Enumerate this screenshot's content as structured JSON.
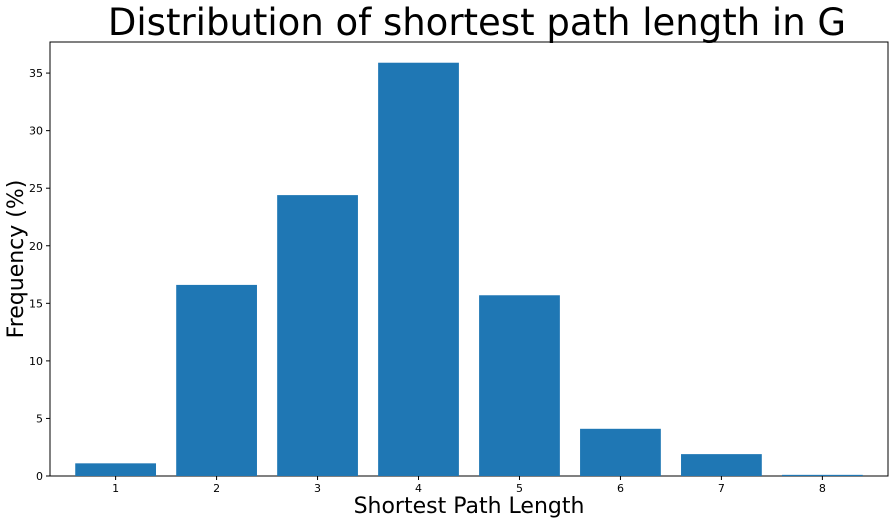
{
  "chart_data": {
    "type": "bar",
    "title": "Distribution of shortest path length in G",
    "xlabel": "Shortest Path Length",
    "ylabel": "Frequency (%)",
    "categories": [
      "1",
      "2",
      "3",
      "4",
      "5",
      "6",
      "7",
      "8"
    ],
    "x": [
      1,
      2,
      3,
      4,
      5,
      6,
      7,
      8
    ],
    "values": [
      1.1,
      16.6,
      24.4,
      35.9,
      15.7,
      4.1,
      1.9,
      0.1
    ],
    "ylim": [
      0,
      37.7
    ],
    "xlim": [
      0.35,
      8.65
    ],
    "yticks": [
      0,
      5,
      10,
      15,
      20,
      25,
      30,
      35
    ],
    "ytick_labels": [
      "0",
      "5",
      "10",
      "15",
      "20",
      "25",
      "30",
      "35"
    ],
    "xtick_labels": [
      "1",
      "2",
      "3",
      "4",
      "5",
      "6",
      "7",
      "8"
    ],
    "bar_color": "#1f77b4",
    "grid": false,
    "legend": null
  }
}
